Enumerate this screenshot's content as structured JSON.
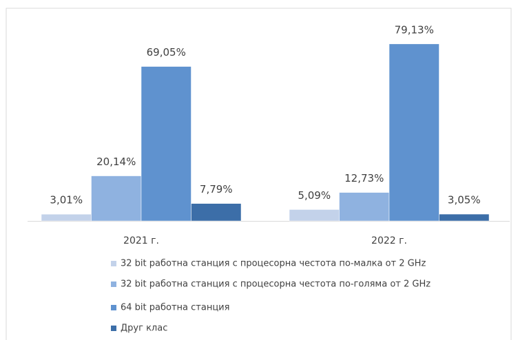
{
  "chart_data": {
    "type": "bar",
    "categories": [
      "2021 г.",
      "2022 г."
    ],
    "series": [
      {
        "name": "32 bit работна станция с процесорна честота по-малка от 2 GHz",
        "color": "#c3d2ea",
        "values": [
          3.01,
          5.09
        ],
        "value_labels": [
          "3,01%",
          "5,09%"
        ]
      },
      {
        "name": "32 bit работна станция с процесорна честота по-голяма от 2 GHz",
        "color": "#8fb2e0",
        "values": [
          20.14,
          12.73
        ],
        "value_labels": [
          "20,14%",
          "12,73%"
        ]
      },
      {
        "name": "64 bit работна станция",
        "color": "#5f92cf",
        "values": [
          69.05,
          79.13
        ],
        "value_labels": [
          "69,05%",
          "79,13%"
        ]
      },
      {
        "name": "Друг клас",
        "color": "#3c6ea8",
        "values": [
          7.79,
          3.05
        ],
        "value_labels": [
          "7,79%",
          "3,05%"
        ]
      }
    ]
  }
}
